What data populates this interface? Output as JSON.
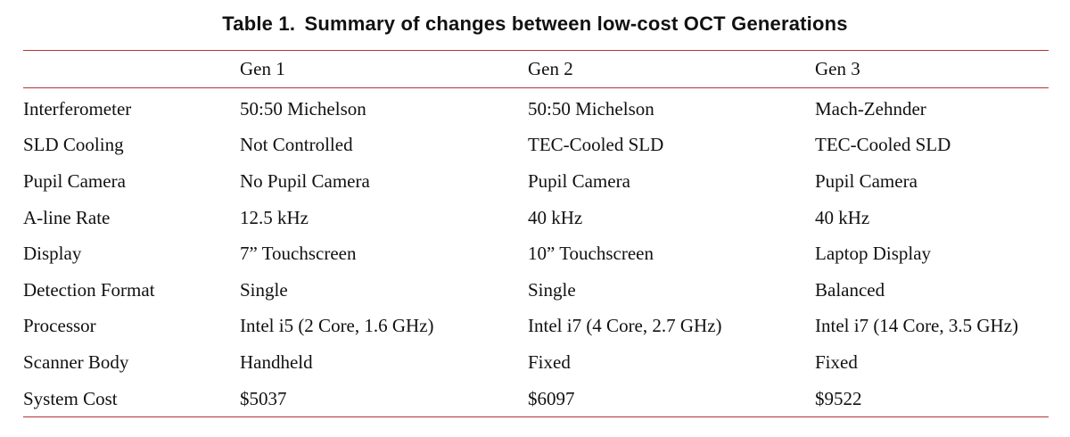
{
  "caption": {
    "label": "Table 1.",
    "title": "Summary of changes between low-cost OCT Generations"
  },
  "table": {
    "headers": [
      "",
      "Gen 1",
      "Gen 2",
      "Gen 3"
    ],
    "rows": [
      [
        "Interferometer",
        "50:50 Michelson",
        "50:50 Michelson",
        "Mach-Zehnder"
      ],
      [
        "SLD Cooling",
        "Not Controlled",
        "TEC-Cooled SLD",
        "TEC-Cooled SLD"
      ],
      [
        "Pupil Camera",
        "No Pupil Camera",
        "Pupil Camera",
        "Pupil Camera"
      ],
      [
        "A-line Rate",
        "12.5 kHz",
        "40 kHz",
        "40 kHz"
      ],
      [
        "Display",
        "7” Touchscreen",
        "10” Touchscreen",
        "Laptop Display"
      ],
      [
        "Detection Format",
        "Single",
        "Single",
        "Balanced"
      ],
      [
        "Processor",
        "Intel i5 (2 Core, 1.6 GHz)",
        "Intel i7 (4 Core, 2.7 GHz)",
        "Intel i7 (14 Core, 3.5 GHz)"
      ],
      [
        "Scanner Body",
        "Handheld",
        "Fixed",
        "Fixed"
      ],
      [
        "System Cost",
        "$5037",
        "$6097",
        "$9522"
      ]
    ]
  },
  "colors": {
    "rule": "#b5313c",
    "text": "#111111"
  }
}
